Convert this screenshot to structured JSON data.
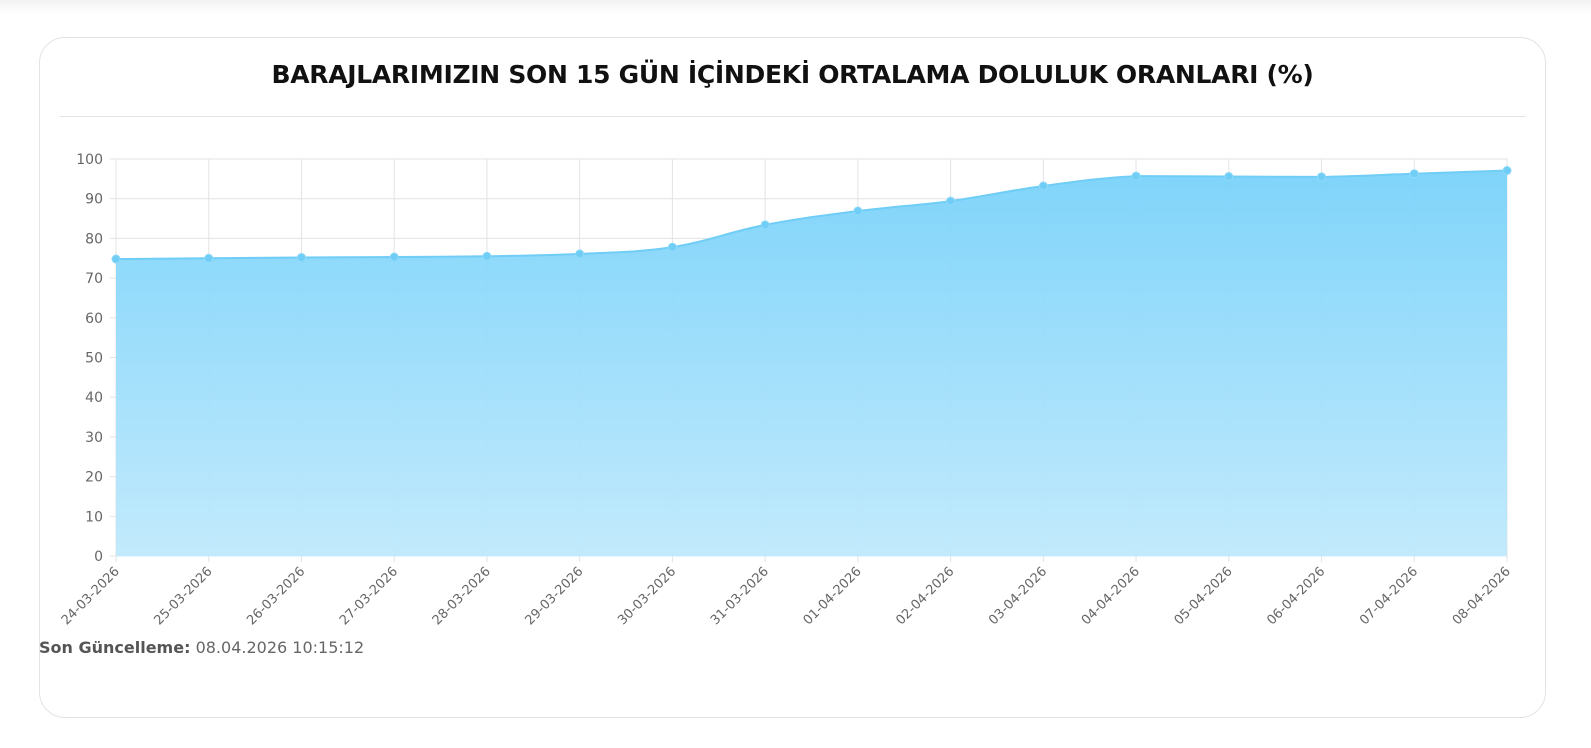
{
  "header": {
    "title": "BARAJLARIMIZIN SON 15 GÜN İÇİNDEKİ ORTALAMA DOLULUK ORANLARI (%)"
  },
  "footer": {
    "label": "Son Güncelleme:",
    "value": "08.04.2026 10:15:12"
  },
  "colors": {
    "line": "#6fcdf6",
    "point": "#6fcdf6",
    "fill_top": "#79d2fa",
    "fill_bottom": "#bfe9fc",
    "grid": "#e3e3e3"
  },
  "chart_data": {
    "type": "area",
    "title": "BARAJLARIMIZIN SON 15 GÜN İÇİNDEKİ ORTALAMA DOLULUK ORANLARI (%)",
    "xlabel": "",
    "ylabel": "",
    "ylim": [
      0,
      100
    ],
    "yticks": [
      0,
      10,
      20,
      30,
      40,
      50,
      60,
      70,
      80,
      90,
      100
    ],
    "grid": true,
    "legend": "none",
    "categories": [
      "24-03-2026",
      "25-03-2026",
      "26-03-2026",
      "27-03-2026",
      "28-03-2026",
      "29-03-2026",
      "30-03-2026",
      "31-03-2026",
      "01-04-2026",
      "02-04-2026",
      "03-04-2026",
      "04-04-2026",
      "05-04-2026",
      "06-04-2026",
      "07-04-2026",
      "08-04-2026"
    ],
    "series": [
      {
        "values": [
          74.8,
          75.0,
          75.2,
          75.3,
          75.5,
          76.1,
          77.8,
          83.4,
          86.9,
          89.4,
          93.2,
          95.7,
          95.6,
          95.5,
          96.3,
          97.1
        ]
      }
    ]
  }
}
